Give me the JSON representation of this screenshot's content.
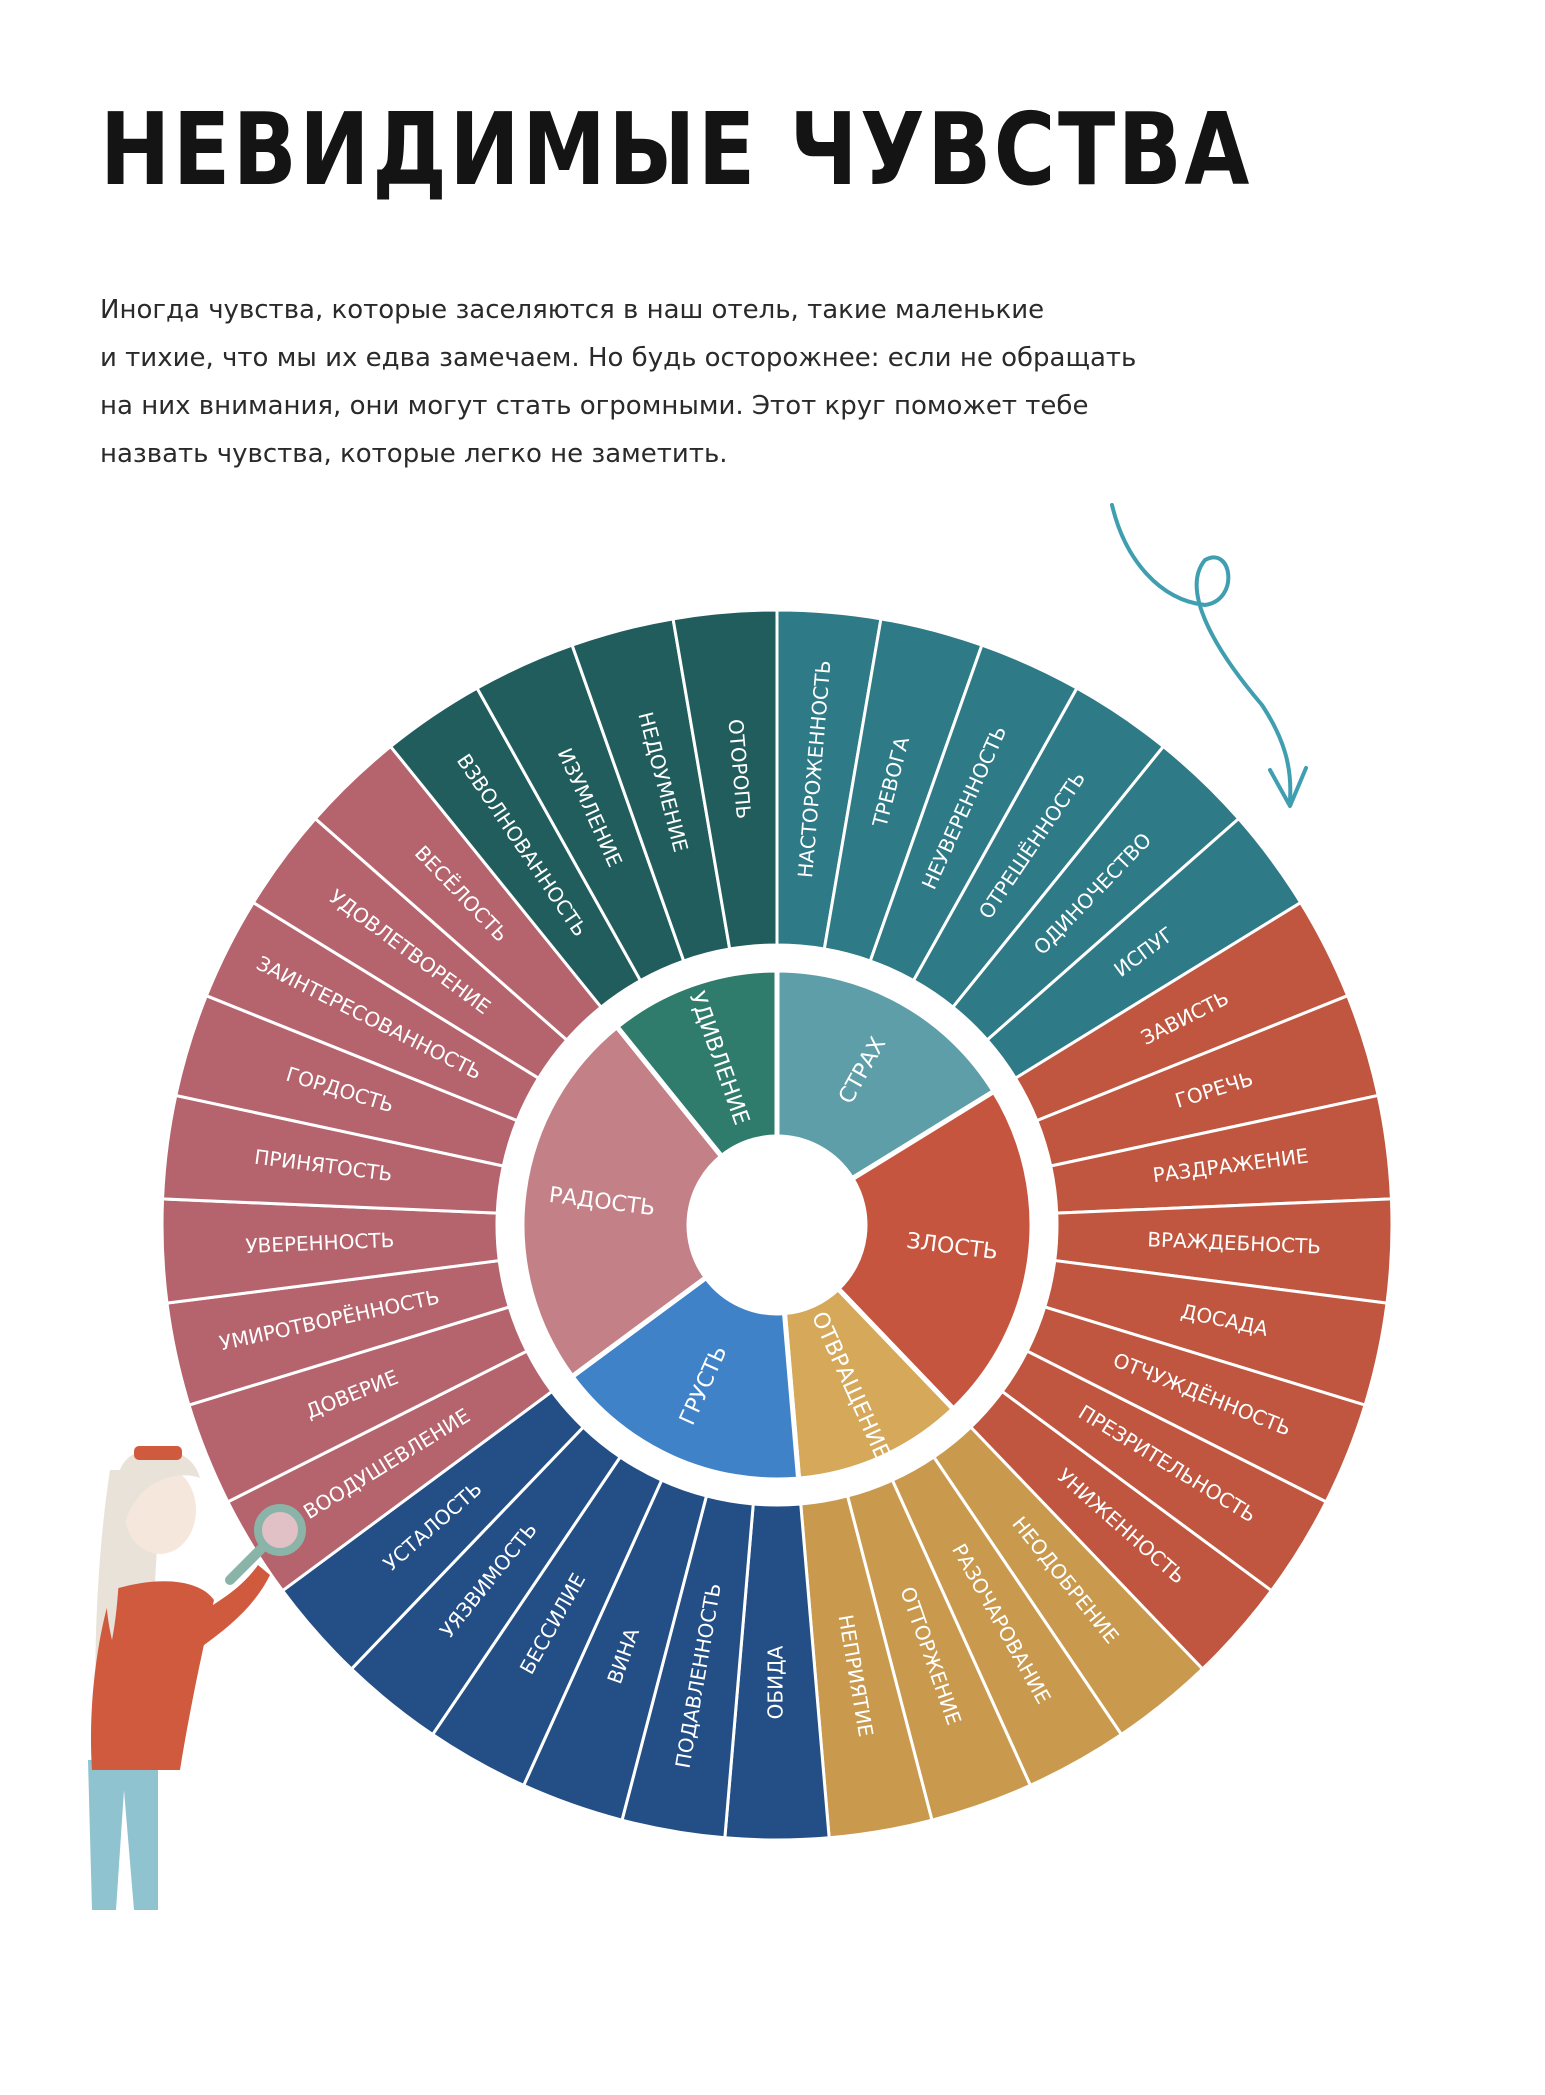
{
  "title": "НЕВИДИМЫЕ ЧУВСТВА",
  "intro_lines": [
    "Иногда чувства, которые заселяются в наш отель, такие маленькие",
    "и тихие, что мы их едва замечаем. Но будь осторожнее: если не обращать",
    "на них внимания, они могут стать огромными. Этот круг поможет тебе",
    "назвать чувства, которые легко не заметить."
  ],
  "wheel": {
    "categories": [
      {
        "name": "СТРАХ",
        "inner_color": "#5e9ea8",
        "outer_color": "#2e7a86",
        "feelings": [
          "НАСТОРОЖЕННОСТЬ",
          "ТРЕВОГА",
          "НЕУВЕРЕННОСТЬ",
          "ОТРЕШЁННОСТЬ",
          "ОДИНОЧЕСТВО",
          "ИСПУГ"
        ]
      },
      {
        "name": "ЗЛОСТЬ",
        "inner_color": "#c6553f",
        "outer_color": "#c0563f",
        "feelings": [
          "ЗАВИСТЬ",
          "ГОРЕЧЬ",
          "РАЗДРАЖЕНИЕ",
          "ВРАЖДЕБНОСТЬ",
          "ДОСАДА",
          "ОТЧУЖДЁННОСТЬ",
          "ПРЕЗРИТЕЛЬНОСТЬ",
          "УНИЖЕННОСТЬ"
        ]
      },
      {
        "name": "ОТВРАЩЕНИЕ",
        "inner_color": "#d5a85a",
        "outer_color": "#c99a4e",
        "feelings": [
          "НЕОДОБРЕНИЕ",
          "РАЗОЧАРОВАНИЕ",
          "ОТТОРЖЕНИЕ",
          "НЕПРИЯТИЕ"
        ]
      },
      {
        "name": "ГРУСТЬ",
        "inner_color": "#3f82c8",
        "outer_color": "#234f86",
        "feelings": [
          "ОБИДА",
          "ПОДАВЛЕННОСТЬ",
          "ВИНА",
          "БЕССИЛИЕ",
          "УЯЗВИМОСТЬ",
          "УСТАЛОСТЬ"
        ]
      },
      {
        "name": "РАДОСТЬ",
        "inner_color": "#c38187",
        "outer_color": "#b5646e",
        "feelings": [
          "ВООДУШЕВЛЕНИЕ",
          "ДОВЕРИЕ",
          "УМИРОТВОРЁННОСТЬ",
          "УВЕРЕННОСТЬ",
          "ПРИНЯТОСТЬ",
          "ГОРДОСТЬ",
          "ЗАИНТЕРЕСОВАННОСТЬ",
          "УДОВЛЕТВОРЕНИЕ",
          "ВЕСЁЛОСТЬ"
        ]
      },
      {
        "name": "УДИВЛЕНИЕ",
        "inner_color": "#2f7c6c",
        "outer_color": "#215d5d",
        "feelings": [
          "ВЗВОЛНОВАННОСТЬ",
          "ИЗУМЛЕНИЕ",
          "НЕДОУМЕНИЕ",
          "ОТОРОПЬ"
        ]
      }
    ]
  },
  "arrow_color": "#3f9eb0",
  "illustration": {
    "hair_color": "#e9e2d8",
    "sweater_color": "#cf5a3e",
    "pants_color": "#8fc3cf",
    "magnifier_color": "#8ab4a8"
  }
}
